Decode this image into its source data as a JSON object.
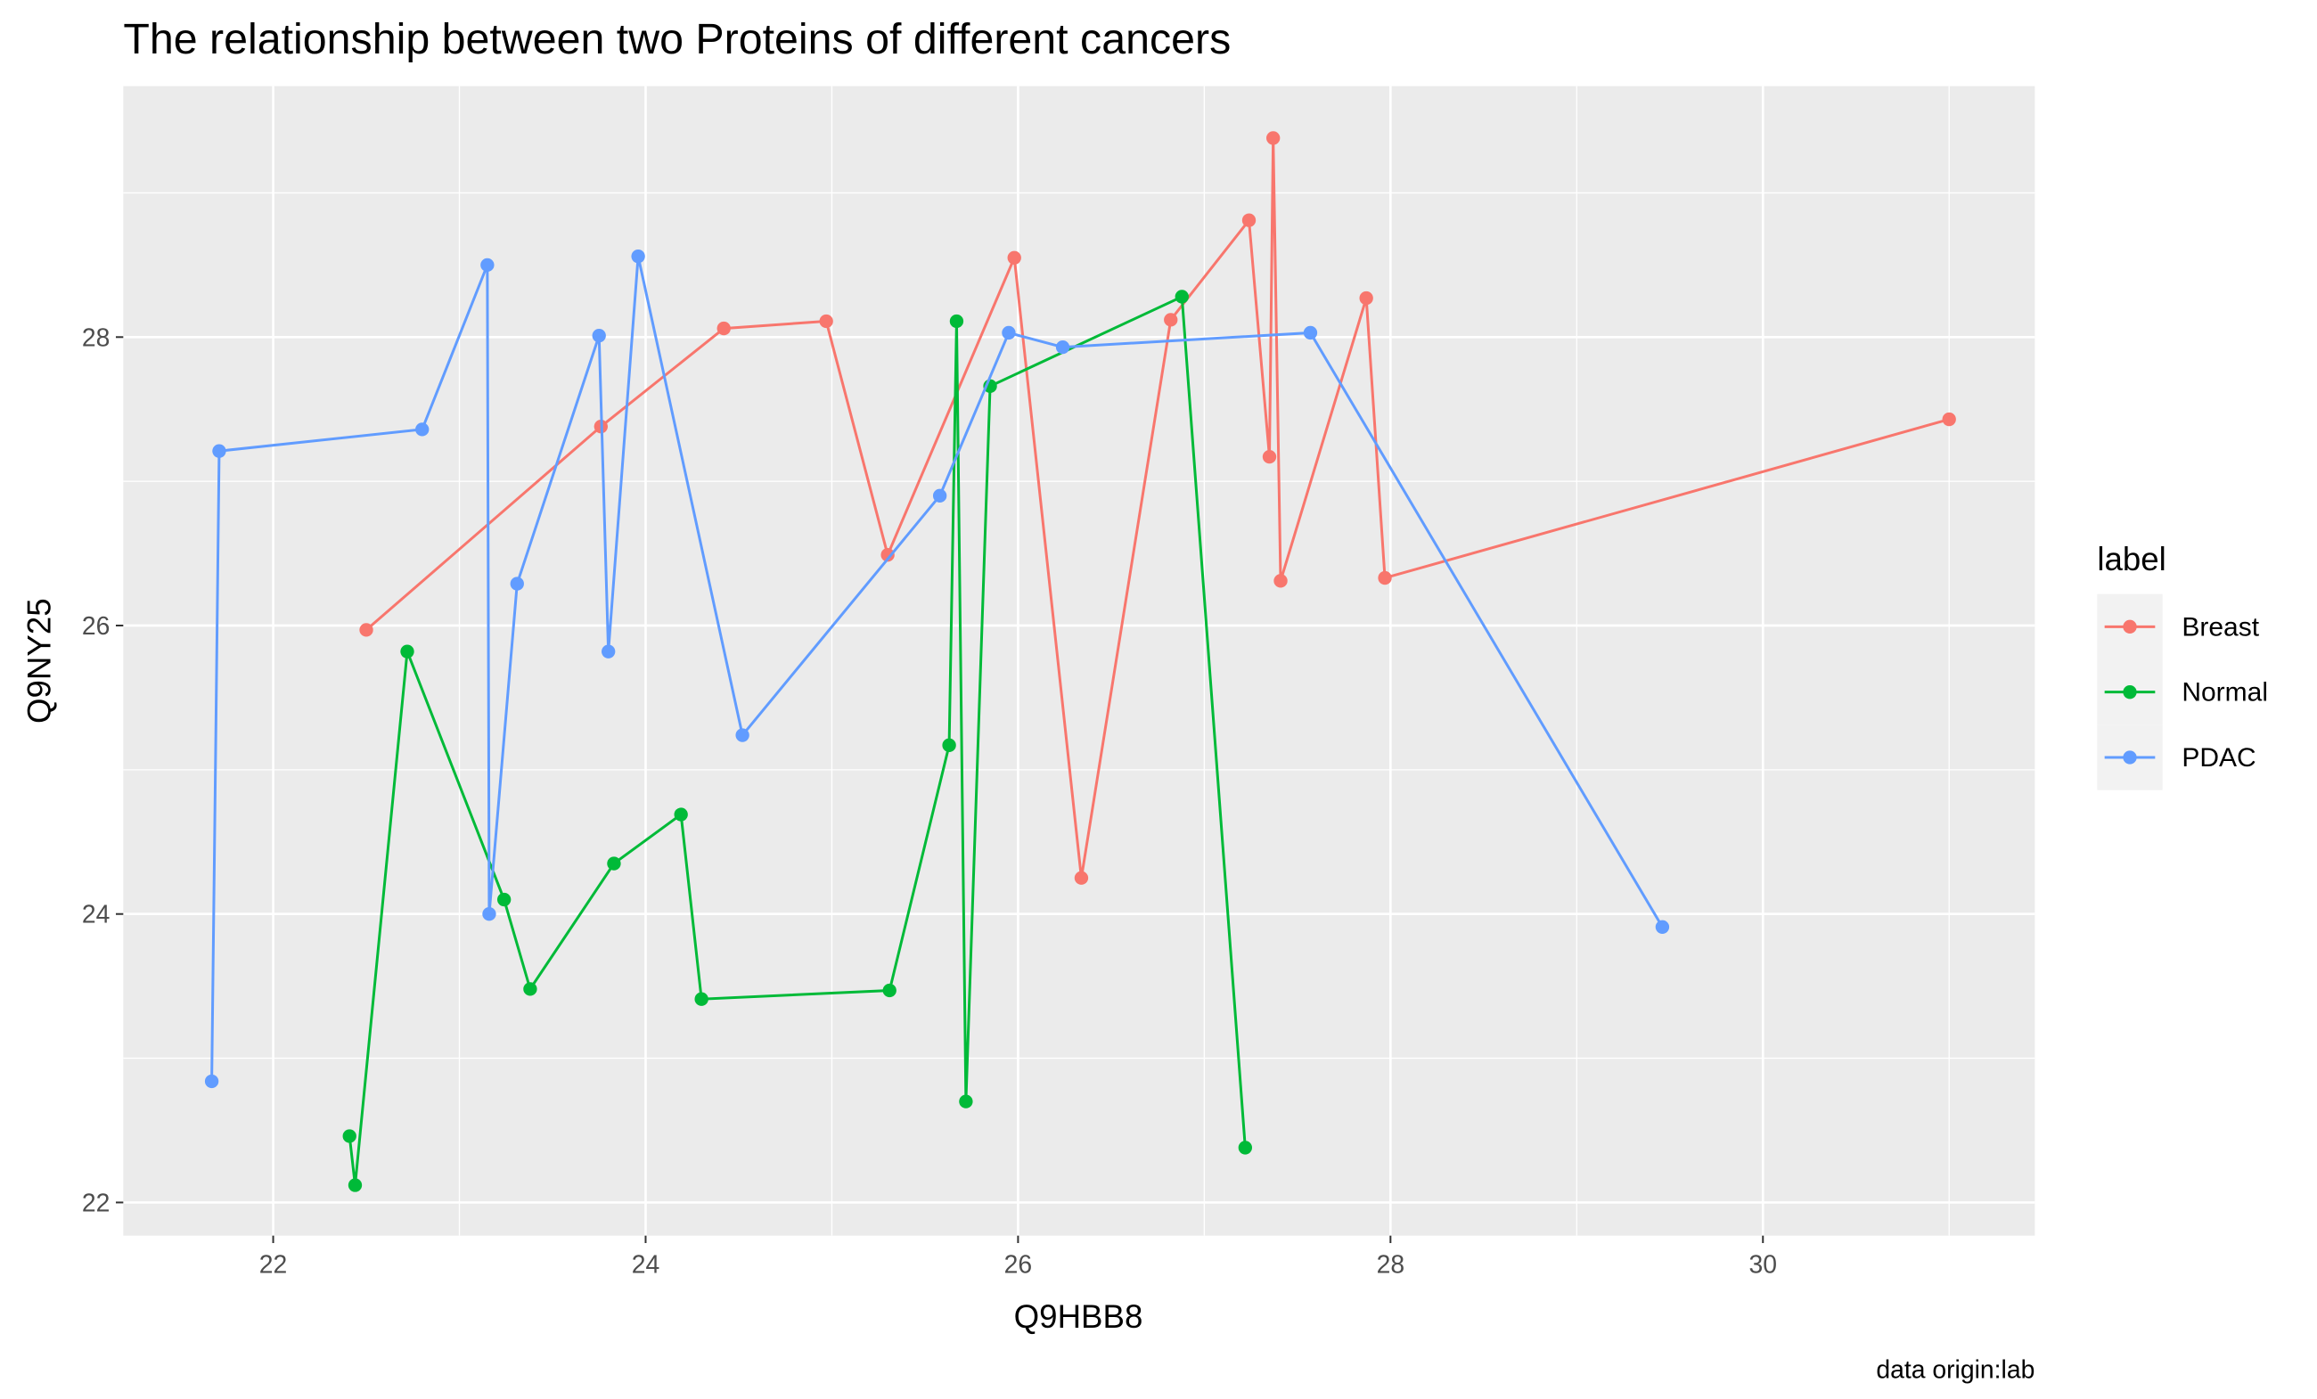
{
  "chart_data": {
    "type": "line",
    "title": "The relationship between two Proteins of different cancers",
    "x_label": "Q9HBB8",
    "y_label": "Q9NY25",
    "caption": "data origin:lab",
    "legend_title": "label",
    "legend_position": "right",
    "grid": true,
    "markers": true,
    "xlim": [
      21.195,
      31.46
    ],
    "ylim": [
      21.77,
      29.74
    ],
    "xticks": [
      22,
      24,
      26,
      28,
      30
    ],
    "yticks": [
      22,
      24,
      26,
      28
    ],
    "series": [
      {
        "name": "Breast",
        "color": "#F8766D",
        "x": [
          22.5,
          23.76,
          24.42,
          24.97,
          25.3,
          25.98,
          26.34,
          26.82,
          27.24,
          27.35,
          27.37,
          27.41,
          27.87,
          27.97,
          31.0
        ],
        "values": [
          25.97,
          27.38,
          28.06,
          28.11,
          26.49,
          28.55,
          24.25,
          28.12,
          28.81,
          27.17,
          29.38,
          26.31,
          28.27,
          26.33,
          27.43
        ]
      },
      {
        "name": "Normal",
        "color": "#00BA38",
        "x": [
          22.41,
          22.44,
          22.72,
          23.24,
          23.38,
          23.83,
          24.19,
          24.3,
          25.31,
          25.63,
          25.67,
          25.72,
          25.85,
          26.88,
          27.22
        ],
        "values": [
          22.46,
          22.12,
          25.82,
          24.1,
          23.48,
          24.35,
          24.69,
          23.41,
          23.47,
          25.17,
          28.11,
          22.7,
          27.66,
          28.28,
          22.38
        ]
      },
      {
        "name": "PDAC",
        "color": "#619CFF",
        "x": [
          21.67,
          21.71,
          22.8,
          23.15,
          23.16,
          23.31,
          23.75,
          23.8,
          23.96,
          24.52,
          25.58,
          25.95,
          26.24,
          27.57,
          29.46
        ],
        "values": [
          22.84,
          27.21,
          27.36,
          28.5,
          24.0,
          26.29,
          28.01,
          25.82,
          28.56,
          25.24,
          26.9,
          28.03,
          27.93,
          28.03,
          23.91
        ]
      }
    ]
  }
}
